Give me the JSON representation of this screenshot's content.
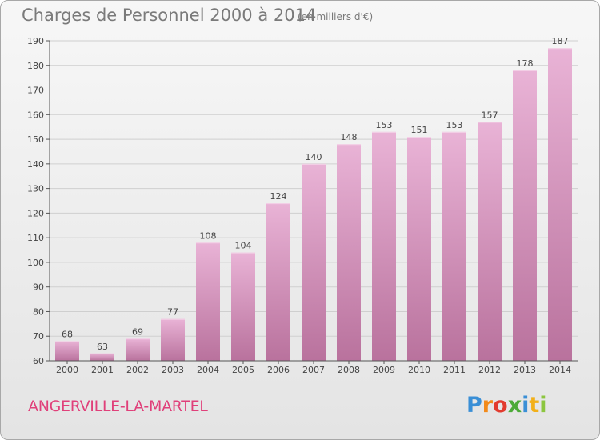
{
  "header": {
    "title": "Charges de Personnel 2000 à 2014",
    "subtitle": "(en milliers d'€)"
  },
  "footer": {
    "city": "ANGERVILLE-LA-MARTEL",
    "logo": "Proxiti",
    "logo_letters": [
      "P",
      "r",
      "o",
      "x",
      "i",
      "t",
      "i"
    ],
    "logo_colors": [
      "#3a8fd6",
      "#f28a1a",
      "#e23b2e",
      "#4caa38",
      "#3a8fd6",
      "#f2b01a",
      "#8cc63f"
    ]
  },
  "colors": {
    "bar_light": "#e9b3d6",
    "bar_dark": "#b9729d",
    "grid": "#cfcfcf",
    "axis": "#555555",
    "label": "#444444"
  },
  "chart_data": {
    "type": "bar",
    "title": "Charges de Personnel 2000 à 2014",
    "subtitle": "(en milliers d'€)",
    "xlabel": "",
    "ylabel": "",
    "categories": [
      "2000",
      "2001",
      "2002",
      "2003",
      "2004",
      "2005",
      "2006",
      "2007",
      "2008",
      "2009",
      "2010",
      "2011",
      "2012",
      "2013",
      "2014"
    ],
    "values": [
      68,
      63,
      69,
      77,
      108,
      104,
      124,
      140,
      148,
      153,
      151,
      153,
      157,
      178,
      187
    ],
    "ylim": [
      60,
      190
    ],
    "yticks": [
      60,
      70,
      80,
      90,
      100,
      110,
      120,
      130,
      140,
      150,
      160,
      170,
      180,
      190
    ],
    "grid": true
  }
}
